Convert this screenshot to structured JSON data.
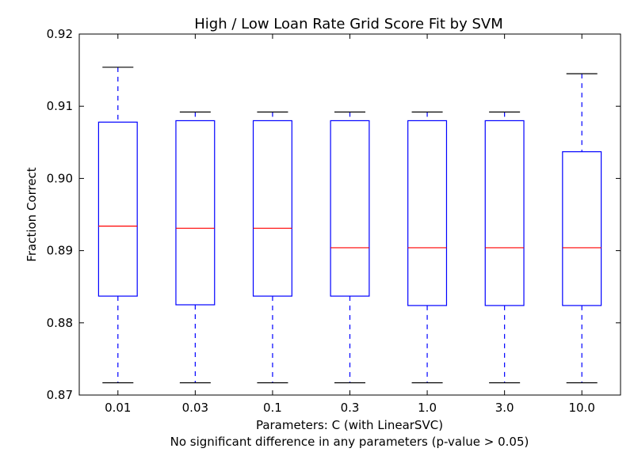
{
  "chart_data": {
    "type": "box",
    "title": "High / Low Loan Rate Grid Score Fit by SVM",
    "xlabel": "Parameters: C (with LinearSVC)",
    "xlabel_note": "No significant difference in any parameters (p-value > 0.05)",
    "ylabel": "Fraction Correct",
    "ylim": [
      0.87,
      0.92
    ],
    "yticks": [
      "0.87",
      "0.88",
      "0.89",
      "0.90",
      "0.91",
      "0.92"
    ],
    "categories": [
      "0.01",
      "0.03",
      "0.1",
      "0.3",
      "1.0",
      "3.0",
      "10.0"
    ],
    "boxes": [
      {
        "whislo": 0.8717,
        "q1": 0.8837,
        "med": 0.8934,
        "q3": 0.9078,
        "whishi": 0.9154
      },
      {
        "whislo": 0.8717,
        "q1": 0.8825,
        "med": 0.8931,
        "q3": 0.908,
        "whishi": 0.9092
      },
      {
        "whislo": 0.8717,
        "q1": 0.8837,
        "med": 0.8931,
        "q3": 0.908,
        "whishi": 0.9092
      },
      {
        "whislo": 0.8717,
        "q1": 0.8837,
        "med": 0.8904,
        "q3": 0.908,
        "whishi": 0.9092
      },
      {
        "whislo": 0.8717,
        "q1": 0.8824,
        "med": 0.8904,
        "q3": 0.908,
        "whishi": 0.9092
      },
      {
        "whislo": 0.8717,
        "q1": 0.8824,
        "med": 0.8904,
        "q3": 0.908,
        "whishi": 0.9092
      },
      {
        "whislo": 0.8717,
        "q1": 0.8824,
        "med": 0.8904,
        "q3": 0.9037,
        "whishi": 0.9145
      }
    ],
    "colors": {
      "box": "#0000ff",
      "median": "#ff0000",
      "cap": "#000000"
    },
    "grid": false,
    "legend": "none"
  }
}
